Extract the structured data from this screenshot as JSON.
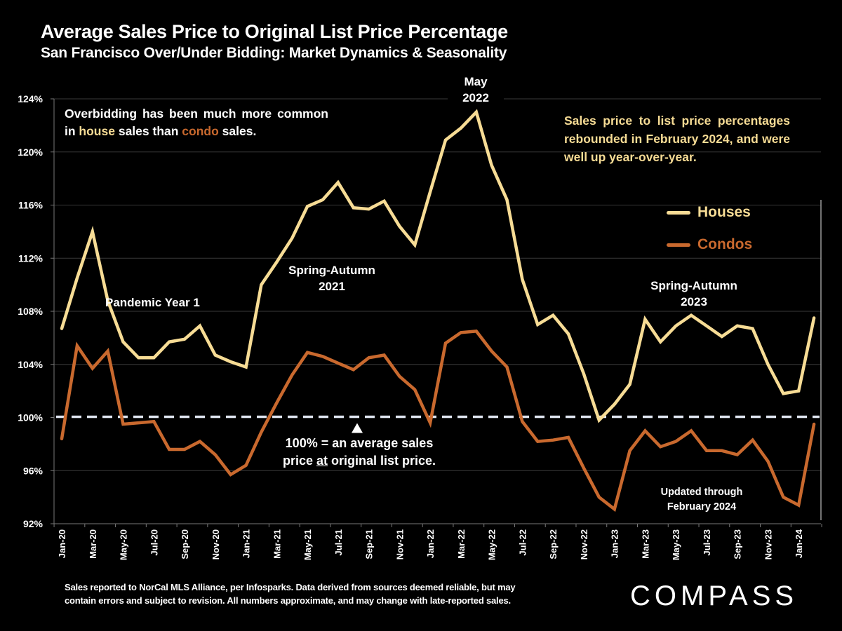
{
  "header": {
    "title": "Average Sales Price to Original List Price Percentage",
    "subtitle": "San Francisco Over/Under Bidding: Market Dynamics & Seasonality"
  },
  "notes": {
    "left_part1": "Overbidding has been much more common in ",
    "left_house": "house",
    "left_part2": " sales than ",
    "left_condo": "condo",
    "left_part3": " sales.",
    "right": "Sales price to list price percentages rebounded in February 2024, and were well up year-over-year."
  },
  "annotations": {
    "pandemic": "Pandemic Year 1",
    "spring2021_line1": "Spring-Autumn",
    "spring2021_line2": "2021",
    "may2022_line1": "May",
    "may2022_line2": "2022",
    "spring2023_line1": "Spring-Autumn",
    "spring2023_line2": "2023",
    "baseline_line1": "100% = an average sales",
    "baseline_line2_pre": "price ",
    "baseline_line2_u": "at",
    "baseline_line2_post": " original list price.",
    "updated_line1": "Updated through",
    "updated_line2": "February 2024"
  },
  "footnote": {
    "line1": "Sales reported to NorCal MLS Alliance, per Infosparks. Data derived from sources deemed reliable, but may",
    "line2": "contain errors and subject to revision. All numbers approximate, and may change with late-reported sales."
  },
  "logo": "COMPASS",
  "colors": {
    "houses": "#f7dc95",
    "condos": "#c9692e",
    "baseline": "#dde3ee",
    "grid": "#3a3a3a"
  },
  "chart_data": {
    "type": "line",
    "title": "Average Sales Price to Original List Price Percentage",
    "subtitle": "San Francisco Over/Under Bidding: Market Dynamics & Seasonality",
    "xlabel": "",
    "ylabel": "",
    "ylim": [
      92,
      124
    ],
    "yticks": [
      92,
      96,
      100,
      104,
      108,
      112,
      116,
      120,
      124
    ],
    "ytick_labels": [
      "92%",
      "96%",
      "100%",
      "104%",
      "108%",
      "112%",
      "116%",
      "120%",
      "124%"
    ],
    "grid": true,
    "legend_position": "right",
    "reference_line": {
      "value": 100,
      "style": "dashed"
    },
    "x": [
      "Jan-20",
      "Feb-20",
      "Mar-20",
      "Apr-20",
      "May-20",
      "Jun-20",
      "Jul-20",
      "Aug-20",
      "Sep-20",
      "Oct-20",
      "Nov-20",
      "Dec-20",
      "Jan-21",
      "Feb-21",
      "Mar-21",
      "Apr-21",
      "May-21",
      "Jun-21",
      "Jul-21",
      "Aug-21",
      "Sep-21",
      "Oct-21",
      "Nov-21",
      "Dec-21",
      "Jan-22",
      "Feb-22",
      "Mar-22",
      "Apr-22",
      "May-22",
      "Jun-22",
      "Jul-22",
      "Aug-22",
      "Sep-22",
      "Oct-22",
      "Nov-22",
      "Dec-22",
      "Jan-23",
      "Feb-23",
      "Mar-23",
      "Apr-23",
      "May-23",
      "Jun-23",
      "Jul-23",
      "Aug-23",
      "Sep-23",
      "Oct-23",
      "Nov-23",
      "Dec-23",
      "Jan-24",
      "Feb-24"
    ],
    "xtick_labels": [
      "Jan-20",
      "Mar-20",
      "May-20",
      "Jul-20",
      "Sep-20",
      "Nov-20",
      "Jan-21",
      "Mar-21",
      "May-21",
      "Jul-21",
      "Sep-21",
      "Nov-21",
      "Jan-22",
      "Mar-22",
      "May-22",
      "Jul-22",
      "Sep-22",
      "Nov-22",
      "Jan-23",
      "Mar-23",
      "May-23",
      "Jul-23",
      "Sep-23",
      "Nov-23",
      "Jan-24"
    ],
    "series": [
      {
        "name": "Houses",
        "color": "#f7dc95",
        "values": [
          106.7,
          110.5,
          114.0,
          108.8,
          105.7,
          104.5,
          104.5,
          105.7,
          105.9,
          106.9,
          104.7,
          104.2,
          103.8,
          110.0,
          111.7,
          113.5,
          115.9,
          116.4,
          117.7,
          115.8,
          115.7,
          116.3,
          114.4,
          113.0,
          117.0,
          120.9,
          121.8,
          123.0,
          119.0,
          116.4,
          110.4,
          107.0,
          107.7,
          106.3,
          103.3,
          99.8,
          101.0,
          102.5,
          107.4,
          105.7,
          106.9,
          107.7,
          106.9,
          106.1,
          106.9,
          106.7,
          104.0,
          101.8,
          102.0,
          107.5
        ]
      },
      {
        "name": "Condos",
        "color": "#c9692e",
        "values": [
          98.4,
          105.4,
          103.7,
          105.0,
          99.5,
          99.6,
          99.7,
          97.6,
          97.6,
          98.2,
          97.2,
          95.7,
          96.4,
          98.9,
          101.1,
          103.2,
          104.9,
          104.6,
          104.1,
          103.6,
          104.5,
          104.7,
          103.1,
          102.1,
          99.6,
          105.6,
          106.4,
          106.5,
          105.0,
          103.8,
          99.7,
          98.2,
          98.3,
          98.5,
          96.2,
          94.0,
          93.1,
          97.5,
          99.0,
          97.8,
          98.2,
          99.0,
          97.5,
          97.5,
          97.2,
          98.3,
          96.7,
          94.0,
          93.4,
          99.5
        ]
      }
    ],
    "legend": [
      "Houses",
      "Condos"
    ]
  }
}
